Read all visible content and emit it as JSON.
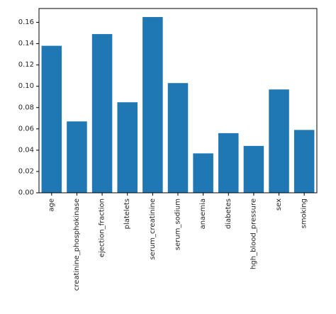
{
  "chart_data": {
    "type": "bar",
    "title": "",
    "xlabel": "",
    "ylabel": "",
    "categories": [
      "age",
      "creatinine_phosphokinase",
      "ejection_fraction",
      "platelets",
      "serum_creatinine",
      "serum_sodium",
      "anaemia",
      "diabetes",
      "hgh_blood_pressure",
      "sex",
      "smoking"
    ],
    "values": [
      0.138,
      0.067,
      0.149,
      0.085,
      0.165,
      0.103,
      0.037,
      0.056,
      0.044,
      0.097,
      0.059
    ],
    "ylim": [
      0,
      0.173
    ],
    "yticks": [
      "0.00",
      "0.02",
      "0.04",
      "0.06",
      "0.08",
      "0.10",
      "0.12",
      "0.14",
      "0.16"
    ],
    "bar_color": "#1f77b4",
    "grid": false,
    "legend": null
  }
}
